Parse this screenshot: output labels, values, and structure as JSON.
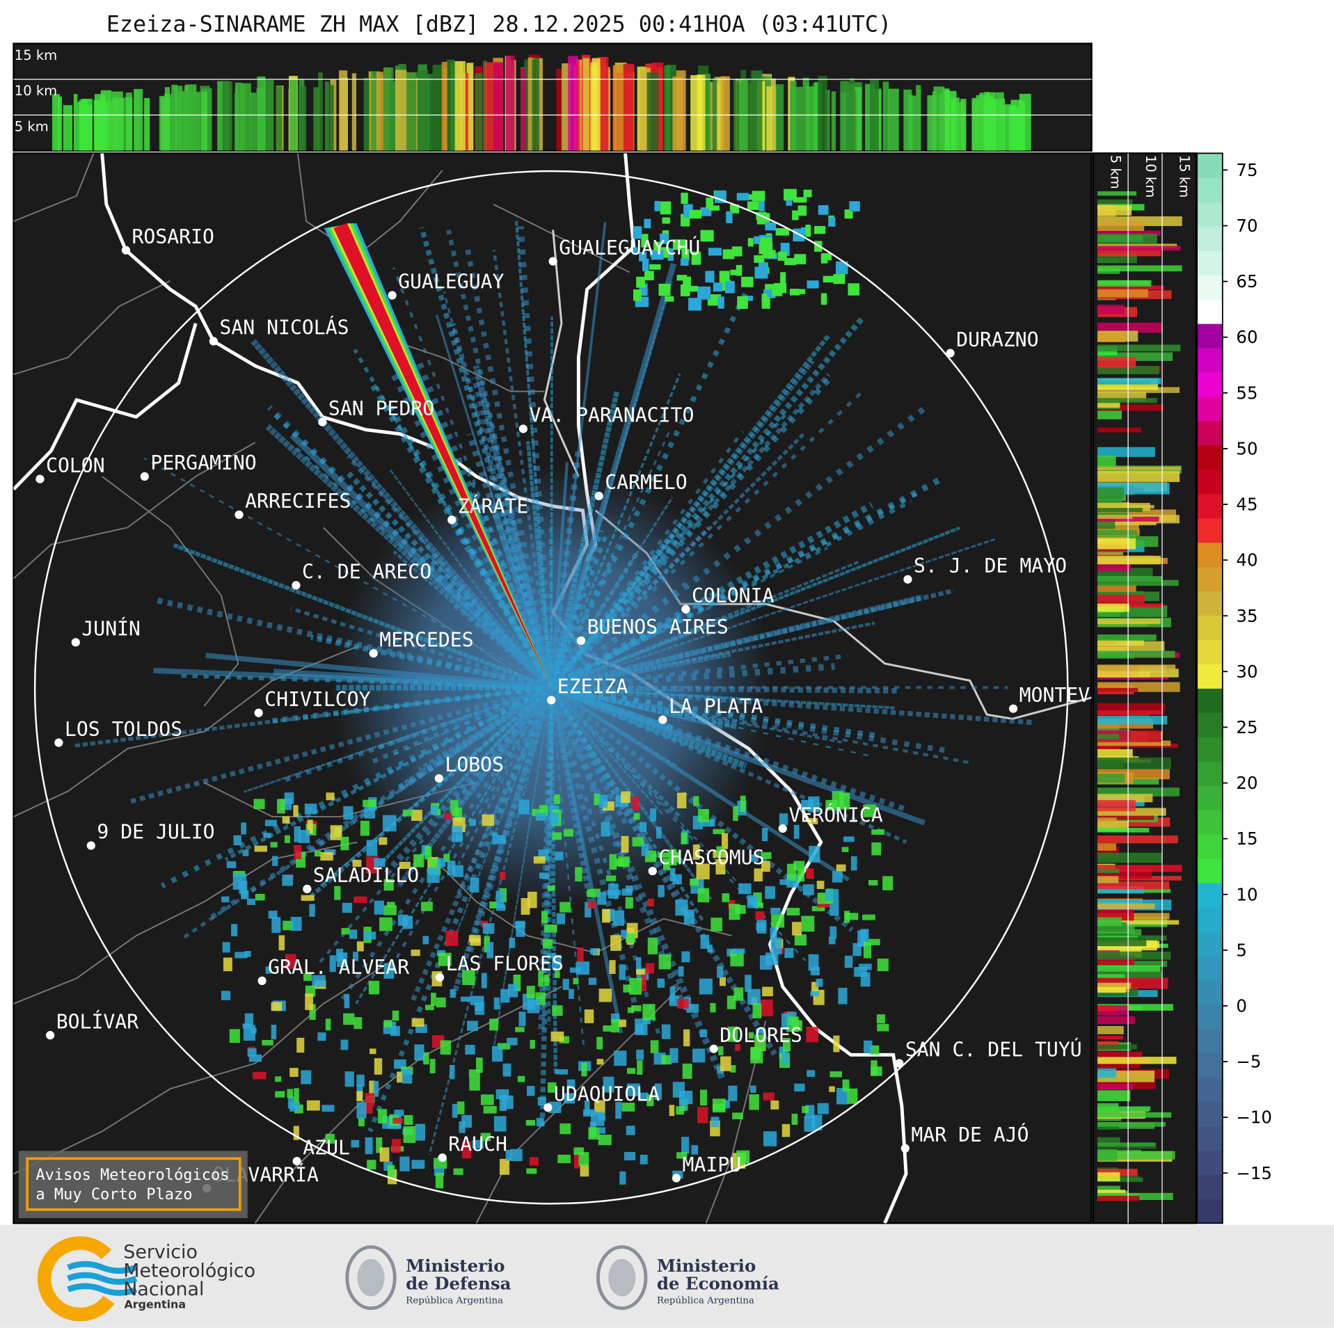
{
  "title": "Ezeiza-SINARAME ZH MAX [dBZ] 28.12.2025 00:41HOA (03:41UTC)",
  "cities": [
    "ROSARIO",
    "GUALEGUAYCHÚ",
    "GUALEGUAY",
    "SAN NICOLÁS",
    "DURAZNO",
    "SAN PEDRO",
    "VA. PARANACITO",
    "COLON",
    "PERGAMINO",
    "CARMELO",
    "ARRECIFES",
    "ZÁRATE",
    "S. J. DE MAYO",
    "C. DE ARECO",
    "COLONIA",
    "JUNÍN",
    "BUENOS AIRES",
    "MERCEDES",
    "EZEIZA",
    "MONTEVIDEO",
    "LA PLATA",
    "CHIVILCOY",
    "LOS TOLDOS",
    "LOBOS",
    "VERÓNICA",
    "9 DE JULIO",
    "CHASCOMUS",
    "SALADILLO",
    "GRAL. ALVEAR",
    "LAS FLORES",
    "BOLÍVAR",
    "DOLORES",
    "SAN C. DEL TUYÚ",
    "UDAQUIOLA",
    "MAR DE AJÓ",
    "RAUCH",
    "AZUL",
    "OLAVARRÍA",
    "MAIPU"
  ],
  "top_section": {
    "height_labels": [
      "15 km",
      "10 km",
      "5 km"
    ]
  },
  "side_section": {
    "height_labels": [
      "5 km",
      "10 km",
      "15 km"
    ]
  },
  "colorbar": {
    "clim": [
      -19.5,
      76.5
    ],
    "ticks": [
      75,
      70,
      65,
      60,
      55,
      50,
      45,
      40,
      35,
      30,
      25,
      20,
      15,
      10,
      5,
      0,
      {
        "value": -5,
        "label": "−5"
      },
      {
        "value": -10,
        "label": "−10"
      },
      {
        "value": -15,
        "label": "−15"
      }
    ],
    "colors": [
      "#363a6a",
      "#3b4272",
      "#3f4b7a",
      "#425482",
      "#435d8a",
      "#436692",
      "#43709a",
      "#4079a2",
      "#3c83aa",
      "#378db2",
      "#3297ba",
      "#2ca1c2",
      "#26abca",
      "#22b5d2",
      "#3ee53a",
      "#3fd43a",
      "#3cc438",
      "#38b234",
      "#33a030",
      "#2e8e2b",
      "#287c26",
      "#216b20",
      "#f0ea3a",
      "#e4d83a",
      "#d8c838",
      "#ceb53a",
      "#d6a02a",
      "#dc8c20",
      "#ee2a2a",
      "#e01028",
      "#c8001e",
      "#b40010",
      "#c8005a",
      "#e000a0",
      "#ee00d0",
      "#d000c0",
      "#a000a0",
      "#ffffff",
      "#e8faf2",
      "#d4f4e6",
      "#c0eedb",
      "#acead0",
      "#98e4c4",
      "#86dcb8"
    ]
  },
  "notice": {
    "lines": [
      "Avisos Meteorológicos",
      "a Muy Corto Plazo"
    ]
  },
  "logos": {
    "smn": [
      "Servicio",
      "Meteorológico",
      "Nacional",
      "Argentina"
    ],
    "defensa": [
      "Ministerio",
      "de Defensa",
      "República Argentina"
    ],
    "economia": [
      "Ministerio",
      "de Economía",
      "República Argentina"
    ]
  }
}
